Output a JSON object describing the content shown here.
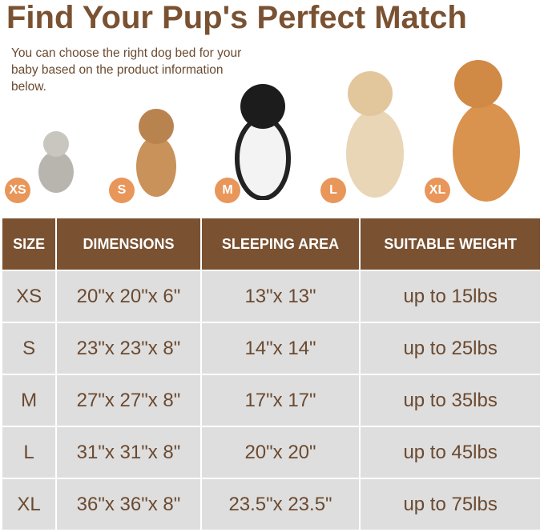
{
  "title": "Find Your Pup's Perfect Match",
  "subtitle": "You can choose the right dog bed for your baby based on the product information below.",
  "colors": {
    "brand": "#7a5232",
    "badge": "#e8965a",
    "cell": "#dedede"
  },
  "pets": [
    {
      "badge": "XS",
      "icon": "cat-image"
    },
    {
      "badge": "S",
      "icon": "french-bulldog-image"
    },
    {
      "badge": "M",
      "icon": "border-collie-image"
    },
    {
      "badge": "L",
      "icon": "golden-retriever-image"
    },
    {
      "badge": "XL",
      "icon": "large-golden-retriever-image"
    }
  ],
  "table": {
    "headers": [
      "SIZE",
      "DIMENSIONS",
      "SLEEPING AREA",
      "SUITABLE WEIGHT"
    ],
    "rows": [
      [
        "XS",
        "20\"x 20\"x 6\"",
        "13\"x 13\"",
        "up to 15lbs"
      ],
      [
        "S",
        "23\"x 23\"x 8\"",
        "14\"x 14\"",
        "up to 25lbs"
      ],
      [
        "M",
        "27\"x 27\"x 8\"",
        "17\"x 17\"",
        "up to 35lbs"
      ],
      [
        "L",
        "31\"x 31\"x 8\"",
        "20\"x 20\"",
        "up to 45lbs"
      ],
      [
        "XL",
        "36\"x 36\"x 8\"",
        "23.5\"x 23.5\"",
        "up to 75lbs"
      ]
    ]
  }
}
